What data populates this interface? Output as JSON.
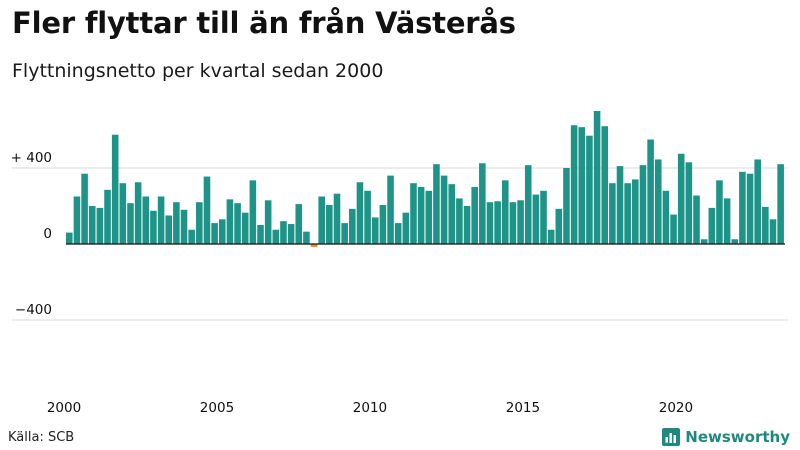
{
  "title": "Fler flyttar till än från Västerås",
  "subtitle": "Flyttningsnetto per kvartal sedan 2000",
  "source": "Källa: SCB",
  "brand": {
    "name": "Newsworthy",
    "logo_icon": "bar-chart-logo-icon",
    "color": "#1e8a7d"
  },
  "colors": {
    "positive": "#1e9488",
    "negative": "#e8891b",
    "grid": "#d9d9d9",
    "baseline": "#111111"
  },
  "chart_data": {
    "type": "bar",
    "title": "Fler flyttar till än från Västerås",
    "subtitle": "Flyttningsnetto per kvartal sedan 2000",
    "xlabel": "",
    "ylabel": "",
    "ylim": [
      -800,
      700
    ],
    "y_ticks": [
      {
        "value": 400,
        "label": "+ 400"
      },
      {
        "value": 0,
        "label": "0"
      },
      {
        "value": -400,
        "label": "−400"
      }
    ],
    "x_ticks": [
      {
        "value": 2000,
        "label": "2000"
      },
      {
        "value": 2005,
        "label": "2005"
      },
      {
        "value": 2010,
        "label": "2010"
      },
      {
        "value": 2015,
        "label": "2015"
      },
      {
        "value": 2020,
        "label": "2020"
      }
    ],
    "grid": "horizontal",
    "x_start": 2000,
    "x_end": 2023.75,
    "bars_per_year": 4,
    "values": [
      60,
      250,
      370,
      200,
      190,
      285,
      575,
      320,
      215,
      325,
      250,
      175,
      250,
      150,
      220,
      180,
      75,
      220,
      355,
      110,
      130,
      235,
      215,
      165,
      335,
      100,
      230,
      75,
      120,
      105,
      210,
      65,
      -15,
      250,
      205,
      265,
      110,
      185,
      325,
      280,
      140,
      205,
      360,
      110,
      165,
      320,
      300,
      280,
      420,
      360,
      315,
      240,
      200,
      300,
      425,
      220,
      225,
      335,
      220,
      230,
      415,
      260,
      280,
      75,
      185,
      400,
      625,
      615,
      570,
      700,
      620,
      320,
      410,
      320,
      340,
      415,
      550,
      445,
      280,
      155,
      475,
      430,
      255,
      25,
      190,
      335,
      240,
      25,
      380,
      370,
      445,
      195,
      130,
      420
    ]
  }
}
